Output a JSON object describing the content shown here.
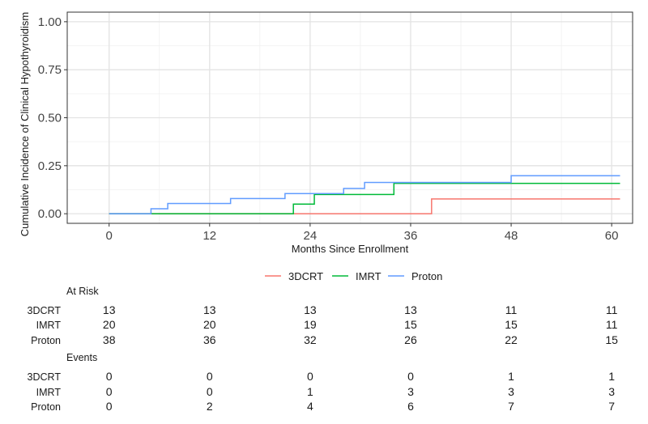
{
  "chart_data": {
    "type": "line",
    "subtype": "step",
    "xlabel": "Months Since Enrollment",
    "ylabel": "Cumulative Incidence of Clinical Hypothyroidism",
    "xlim": [
      -5,
      62.5
    ],
    "ylim": [
      -0.05,
      1.05
    ],
    "x_ticks": [
      0,
      12,
      24,
      36,
      48,
      60
    ],
    "y_ticks": [
      0.0,
      0.25,
      0.5,
      0.75,
      1.0
    ],
    "y_tick_labels": [
      "0.00",
      "0.25",
      "0.50",
      "0.75",
      "1.00"
    ],
    "grid": true,
    "legend_position": "bottom",
    "series": [
      {
        "name": "3DCRT",
        "color": "#F8766D",
        "x": [
          0,
          38.5,
          61
        ],
        "y": [
          0,
          0.077,
          0.077
        ]
      },
      {
        "name": "IMRT",
        "color": "#00BA38",
        "x": [
          0,
          22,
          24.5,
          34,
          61
        ],
        "y": [
          0,
          0.05,
          0.1,
          0.158,
          0.158
        ]
      },
      {
        "name": "Proton",
        "color": "#619CFF",
        "x": [
          0,
          5,
          7,
          14.5,
          21,
          24.5,
          28,
          30.5,
          48,
          61
        ],
        "y": [
          0,
          0.026,
          0.053,
          0.079,
          0.105,
          0.105,
          0.132,
          0.163,
          0.198,
          0.198
        ]
      }
    ],
    "risk_table": {
      "at_risk_title": "At Risk",
      "events_title": "Events",
      "times": [
        0,
        12,
        24,
        36,
        48,
        60
      ],
      "groups": [
        "3DCRT",
        "IMRT",
        "Proton"
      ],
      "at_risk": [
        [
          "13",
          "13",
          "13",
          "13",
          "11",
          "11"
        ],
        [
          "20",
          "20",
          "19",
          "15",
          "15",
          "11"
        ],
        [
          "38",
          "36",
          "32",
          "26",
          "22",
          "15"
        ]
      ],
      "events": [
        [
          "0",
          "0",
          "0",
          "0",
          "1",
          "1"
        ],
        [
          "0",
          "0",
          "1",
          "3",
          "3",
          "3"
        ],
        [
          "0",
          "2",
          "4",
          "6",
          "7",
          "7"
        ]
      ]
    }
  }
}
